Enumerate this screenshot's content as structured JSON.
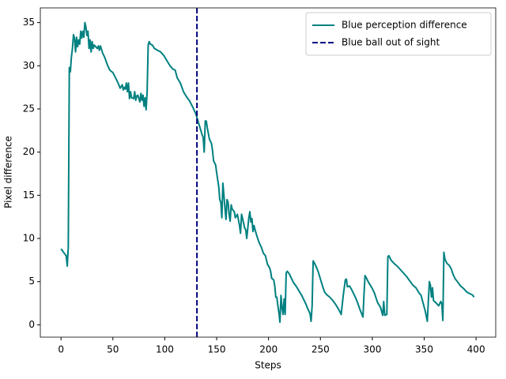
{
  "chart_data": {
    "type": "line",
    "xlabel": "Steps",
    "ylabel": "Pixel difference",
    "x": [
      0,
      3,
      5,
      6,
      7,
      8,
      9,
      10,
      11,
      12,
      13,
      14,
      15,
      16,
      17,
      18,
      19,
      20,
      21,
      22,
      23,
      24,
      25,
      26,
      27,
      28,
      29,
      30,
      31,
      32,
      35,
      36,
      37,
      38,
      40,
      42,
      45,
      47,
      50,
      53,
      55,
      57,
      59,
      60,
      61,
      62,
      63,
      64,
      65,
      66,
      67,
      68,
      70,
      71,
      72,
      73,
      74,
      76,
      77,
      78,
      79,
      80,
      81,
      82,
      83,
      84,
      85,
      86,
      88,
      90,
      93,
      96,
      99,
      102,
      105,
      108,
      110,
      112,
      115,
      118,
      121,
      124,
      127,
      130,
      132,
      134,
      136,
      137,
      138,
      139,
      140,
      141,
      143,
      145,
      146,
      147,
      149,
      150,
      152,
      153,
      154,
      155,
      156,
      157,
      158,
      159,
      160,
      161,
      162,
      163,
      164,
      165,
      167,
      168,
      170,
      172,
      173,
      174,
      175,
      177,
      178,
      179,
      181,
      182,
      183,
      184,
      185,
      186,
      187,
      189,
      191,
      193,
      195,
      197,
      199,
      201,
      202,
      203,
      205,
      206,
      207,
      208,
      209,
      210,
      211,
      212,
      213,
      214,
      215,
      216,
      217,
      218,
      220,
      222,
      224,
      227,
      230,
      232,
      234,
      236,
      238,
      240,
      241,
      242,
      243,
      244,
      246,
      248,
      250,
      252,
      254,
      256,
      259,
      262,
      265,
      268,
      270,
      271,
      272,
      274,
      275,
      276,
      278,
      280,
      282,
      284,
      286,
      288,
      290,
      291,
      292,
      293,
      294,
      296,
      298,
      300,
      302,
      305,
      308,
      310,
      311,
      312,
      314,
      315,
      316,
      318,
      321,
      324,
      327,
      330,
      333,
      336,
      339,
      342,
      345,
      347,
      349,
      351,
      353,
      354,
      355,
      356,
      357,
      358,
      359,
      361,
      364,
      366,
      367,
      368,
      369,
      370,
      372,
      374,
      376,
      378,
      380,
      382,
      385,
      388,
      391,
      394,
      396,
      397,
      398
    ],
    "series": [
      {
        "name": "Blue perception difference",
        "color": "#008080",
        "values": [
          8.8,
          8.3,
          8.0,
          6.8,
          9,
          29.8,
          29.3,
          31,
          32,
          33.6,
          33.2,
          31.6,
          33.3,
          32.2,
          33,
          32.5,
          34,
          33.2,
          34,
          33.3,
          35,
          34.5,
          33.5,
          34,
          32,
          33,
          31.6,
          32.8,
          32,
          32.4,
          32,
          32.3,
          31.8,
          32.3,
          31.5,
          31,
          30,
          29.5,
          29.2,
          28.5,
          28,
          27.4,
          27.8,
          27.2,
          27.5,
          27.3,
          28,
          27,
          28,
          26.2,
          27,
          26.3,
          26.2,
          27,
          26,
          26.5,
          26.6,
          25.8,
          26.8,
          26,
          26.6,
          25.3,
          26.3,
          24.9,
          27,
          32.4,
          32.8,
          32.5,
          32.4,
          32,
          31.8,
          31.6,
          31.2,
          30.6,
          30,
          29.6,
          29.5,
          28.6,
          28,
          27,
          26.4,
          25.9,
          25.2,
          24.4,
          23.6,
          22.8,
          22,
          21.7,
          20,
          23.6,
          23.6,
          22.8,
          21.5,
          21,
          20.2,
          19,
          18.5,
          17.6,
          16,
          14.5,
          14.2,
          12.4,
          16.4,
          15,
          13.5,
          12.2,
          14.5,
          14.2,
          12.8,
          12,
          13.9,
          13.4,
          13.1,
          12.4,
          12.8,
          11.5,
          10.6,
          12.8,
          12.3,
          11.2,
          11,
          10,
          12.4,
          13.1,
          11.9,
          12.3,
          10.8,
          11.5,
          11,
          10.2,
          9.5,
          9,
          8.3,
          8,
          7,
          6.6,
          6.2,
          5.4,
          5.2,
          4.5,
          3.2,
          3.2,
          2.2,
          1.4,
          0.3,
          3.4,
          2,
          1.2,
          3,
          1.2,
          6,
          6.2,
          5.9,
          5.4,
          4.9,
          4.4,
          3.8,
          3.4,
          2.9,
          2.4,
          1.8,
          1.3,
          0.4,
          2.2,
          7.4,
          7.2,
          6.7,
          6.1,
          5.3,
          4.5,
          3.8,
          3.5,
          3.2,
          2.8,
          2.3,
          1.7,
          1.2,
          2.3,
          3.4,
          5.2,
          5.3,
          4.4,
          4.5,
          4.1,
          3.6,
          3.1,
          2.5,
          1.8,
          1.2,
          0.9,
          3.5,
          5.7,
          5.5,
          5,
          4.6,
          4.2,
          3.7,
          2.6,
          2,
          1.1,
          2.7,
          1.1,
          1.2,
          7.9,
          8,
          7.5,
          7.1,
          6.8,
          6.4,
          6.0,
          5.6,
          5.1,
          4.6,
          4.3,
          3.7,
          3.4,
          2.5,
          1.6,
          0.4,
          2.7,
          5,
          4.6,
          3.2,
          4.3,
          2.8,
          2.6,
          2.2,
          2.7,
          2.4,
          0.5,
          8.4,
          7.6,
          7.1,
          6.9,
          6.5,
          5.8,
          5.3,
          5,
          4.5,
          4.2,
          3.8,
          3.6,
          3.5,
          3.4,
          3.2
        ]
      }
    ],
    "vline": {
      "name": "Blue ball out of sight",
      "x": 131,
      "color": "#000080"
    },
    "xlim": [
      -19.95,
      418.95
    ],
    "ylim": [
      -1.43,
      36.7
    ],
    "xticks": [
      0,
      50,
      100,
      150,
      200,
      250,
      300,
      350,
      400
    ],
    "yticks": [
      0,
      5,
      10,
      15,
      20,
      25,
      30,
      35
    ],
    "legend": "upper right"
  }
}
